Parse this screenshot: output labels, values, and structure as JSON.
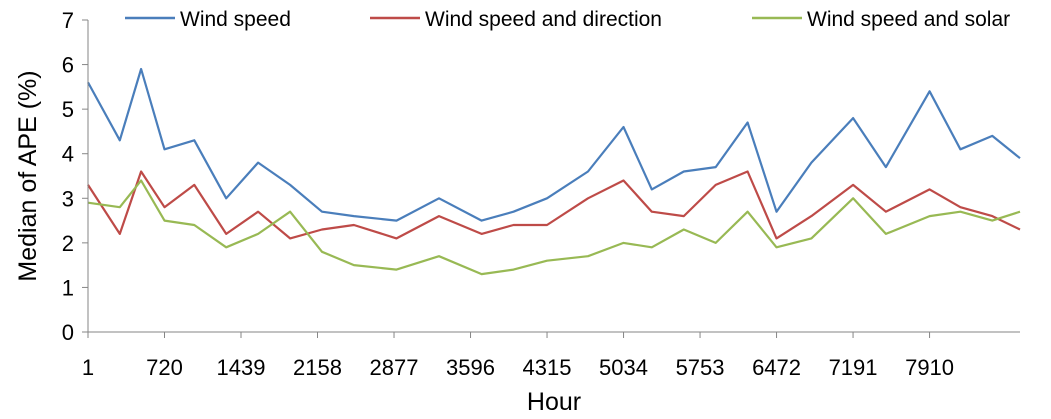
{
  "chart_data": {
    "type": "line",
    "title": "",
    "xlabel": "Hour",
    "ylabel": "Median of APE (%)",
    "xlim": [
      1,
      8760
    ],
    "ylim": [
      0,
      7
    ],
    "yticks": [
      "0",
      "1",
      "2",
      "3",
      "4",
      "5",
      "6",
      "7"
    ],
    "xticks": [
      "1",
      "720",
      "1439",
      "2158",
      "2877",
      "3596",
      "4315",
      "5034",
      "5753",
      "6472",
      "7191",
      "7910"
    ],
    "xtick_values": [
      1,
      720,
      1439,
      2158,
      2877,
      3596,
      4315,
      5034,
      5753,
      6472,
      7191,
      7910
    ],
    "grid": false,
    "legend_position": "top",
    "x": [
      1,
      300,
      500,
      720,
      1000,
      1300,
      1600,
      1900,
      2200,
      2500,
      2900,
      3300,
      3700,
      4000,
      4315,
      4700,
      5034,
      5300,
      5600,
      5900,
      6200,
      6472,
      6800,
      7191,
      7500,
      7910,
      8200,
      8500,
      8760
    ],
    "series": [
      {
        "name": "Wind speed",
        "color": "#4a7ebb",
        "values": [
          5.6,
          4.3,
          5.9,
          4.1,
          4.3,
          3.0,
          3.8,
          3.3,
          2.7,
          2.6,
          2.5,
          3.0,
          2.5,
          2.7,
          3.0,
          3.6,
          4.6,
          3.2,
          3.6,
          3.7,
          4.7,
          2.7,
          3.8,
          4.8,
          3.7,
          5.4,
          4.1,
          4.4,
          3.9
        ]
      },
      {
        "name": "Wind speed and direction",
        "color": "#be4b48",
        "values": [
          3.3,
          2.2,
          3.6,
          2.8,
          3.3,
          2.2,
          2.7,
          2.1,
          2.3,
          2.4,
          2.1,
          2.6,
          2.2,
          2.4,
          2.4,
          3.0,
          3.4,
          2.7,
          2.6,
          3.3,
          3.6,
          2.1,
          2.6,
          3.3,
          2.7,
          3.2,
          2.8,
          2.6,
          2.3
        ]
      },
      {
        "name": "Wind speed and solar",
        "color": "#98b954",
        "values": [
          2.9,
          2.8,
          3.4,
          2.5,
          2.4,
          1.9,
          2.2,
          2.7,
          1.8,
          1.5,
          1.4,
          1.7,
          1.3,
          1.4,
          1.6,
          1.7,
          2.0,
          1.9,
          2.3,
          2.0,
          2.7,
          1.9,
          2.1,
          3.0,
          2.2,
          2.6,
          2.7,
          2.5,
          2.7
        ]
      }
    ]
  }
}
